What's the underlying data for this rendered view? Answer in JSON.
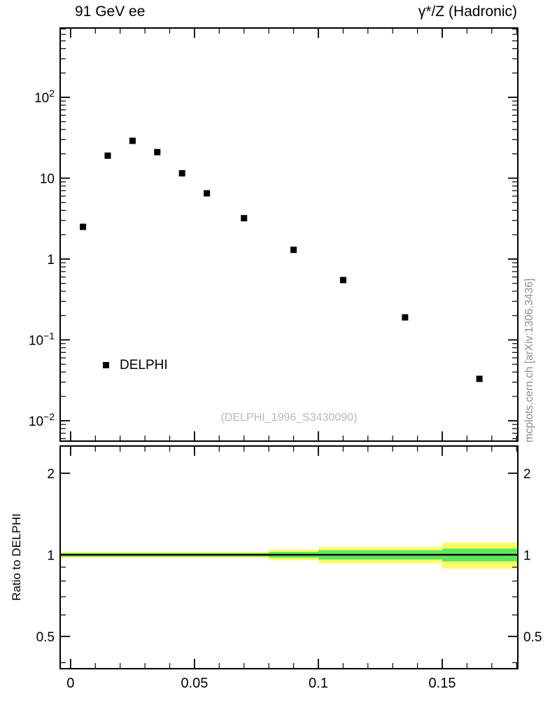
{
  "header": {
    "left_title": "91 GeV ee",
    "right_title": "γ*/Z (Hadronic)"
  },
  "legend": {
    "label": "DELPHI"
  },
  "watermark": "(DELPHI_1996_S3430090)",
  "side_note": "mcplots.cern.ch [arXiv:1306.3436]",
  "chart_data": {
    "type": "scatter",
    "title": "91 GeV ee",
    "right_title": "γ*/Z (Hadronic)",
    "yscale": "log",
    "xlim": [
      -0.0042,
      0.1805
    ],
    "ylim_log": [
      0.0056,
      720
    ],
    "xticks": [
      0,
      0.05,
      0.1,
      0.15
    ],
    "xtick_labels": [
      "0",
      "0.05",
      "0.1",
      "0.15"
    ],
    "x_minor_step": 0.01,
    "y_decades": [
      -2,
      -1,
      0,
      1,
      2
    ],
    "annotation": "(DELPHI_1996_S3430090)",
    "series": [
      {
        "name": "DELPHI",
        "marker": "square",
        "color": "#000000",
        "x": [
          0.005,
          0.015,
          0.025,
          0.035,
          0.045,
          0.055,
          0.07,
          0.09,
          0.11,
          0.135,
          0.165
        ],
        "y": [
          2.5,
          19,
          29,
          21,
          11.5,
          6.5,
          3.2,
          1.3,
          0.55,
          0.19,
          0.033
        ]
      }
    ],
    "ratio_panel": {
      "ylabel": "Ratio to DELPHI",
      "ylim_log": [
        0.38,
        2.52
      ],
      "yticks": [
        0.5,
        1,
        2
      ],
      "ytick_labels": [
        "0.5",
        "1",
        "2"
      ],
      "unity_line": 1.0,
      "band_colors": {
        "outer": "#ffff69",
        "inner": "#5ee75e"
      },
      "bands": [
        {
          "x0": -0.0042,
          "x1": 0.08,
          "outer_lo": 0.975,
          "outer_hi": 1.025,
          "inner_lo": 0.985,
          "inner_hi": 1.015
        },
        {
          "x0": 0.08,
          "x1": 0.1,
          "outer_lo": 0.955,
          "outer_hi": 1.045,
          "inner_lo": 0.975,
          "inner_hi": 1.025
        },
        {
          "x0": 0.1,
          "x1": 0.15,
          "outer_lo": 0.93,
          "outer_hi": 1.07,
          "inner_lo": 0.96,
          "inner_hi": 1.04
        },
        {
          "x0": 0.15,
          "x1": 0.1805,
          "outer_lo": 0.89,
          "outer_hi": 1.11,
          "inner_lo": 0.945,
          "inner_hi": 1.055
        }
      ]
    }
  }
}
